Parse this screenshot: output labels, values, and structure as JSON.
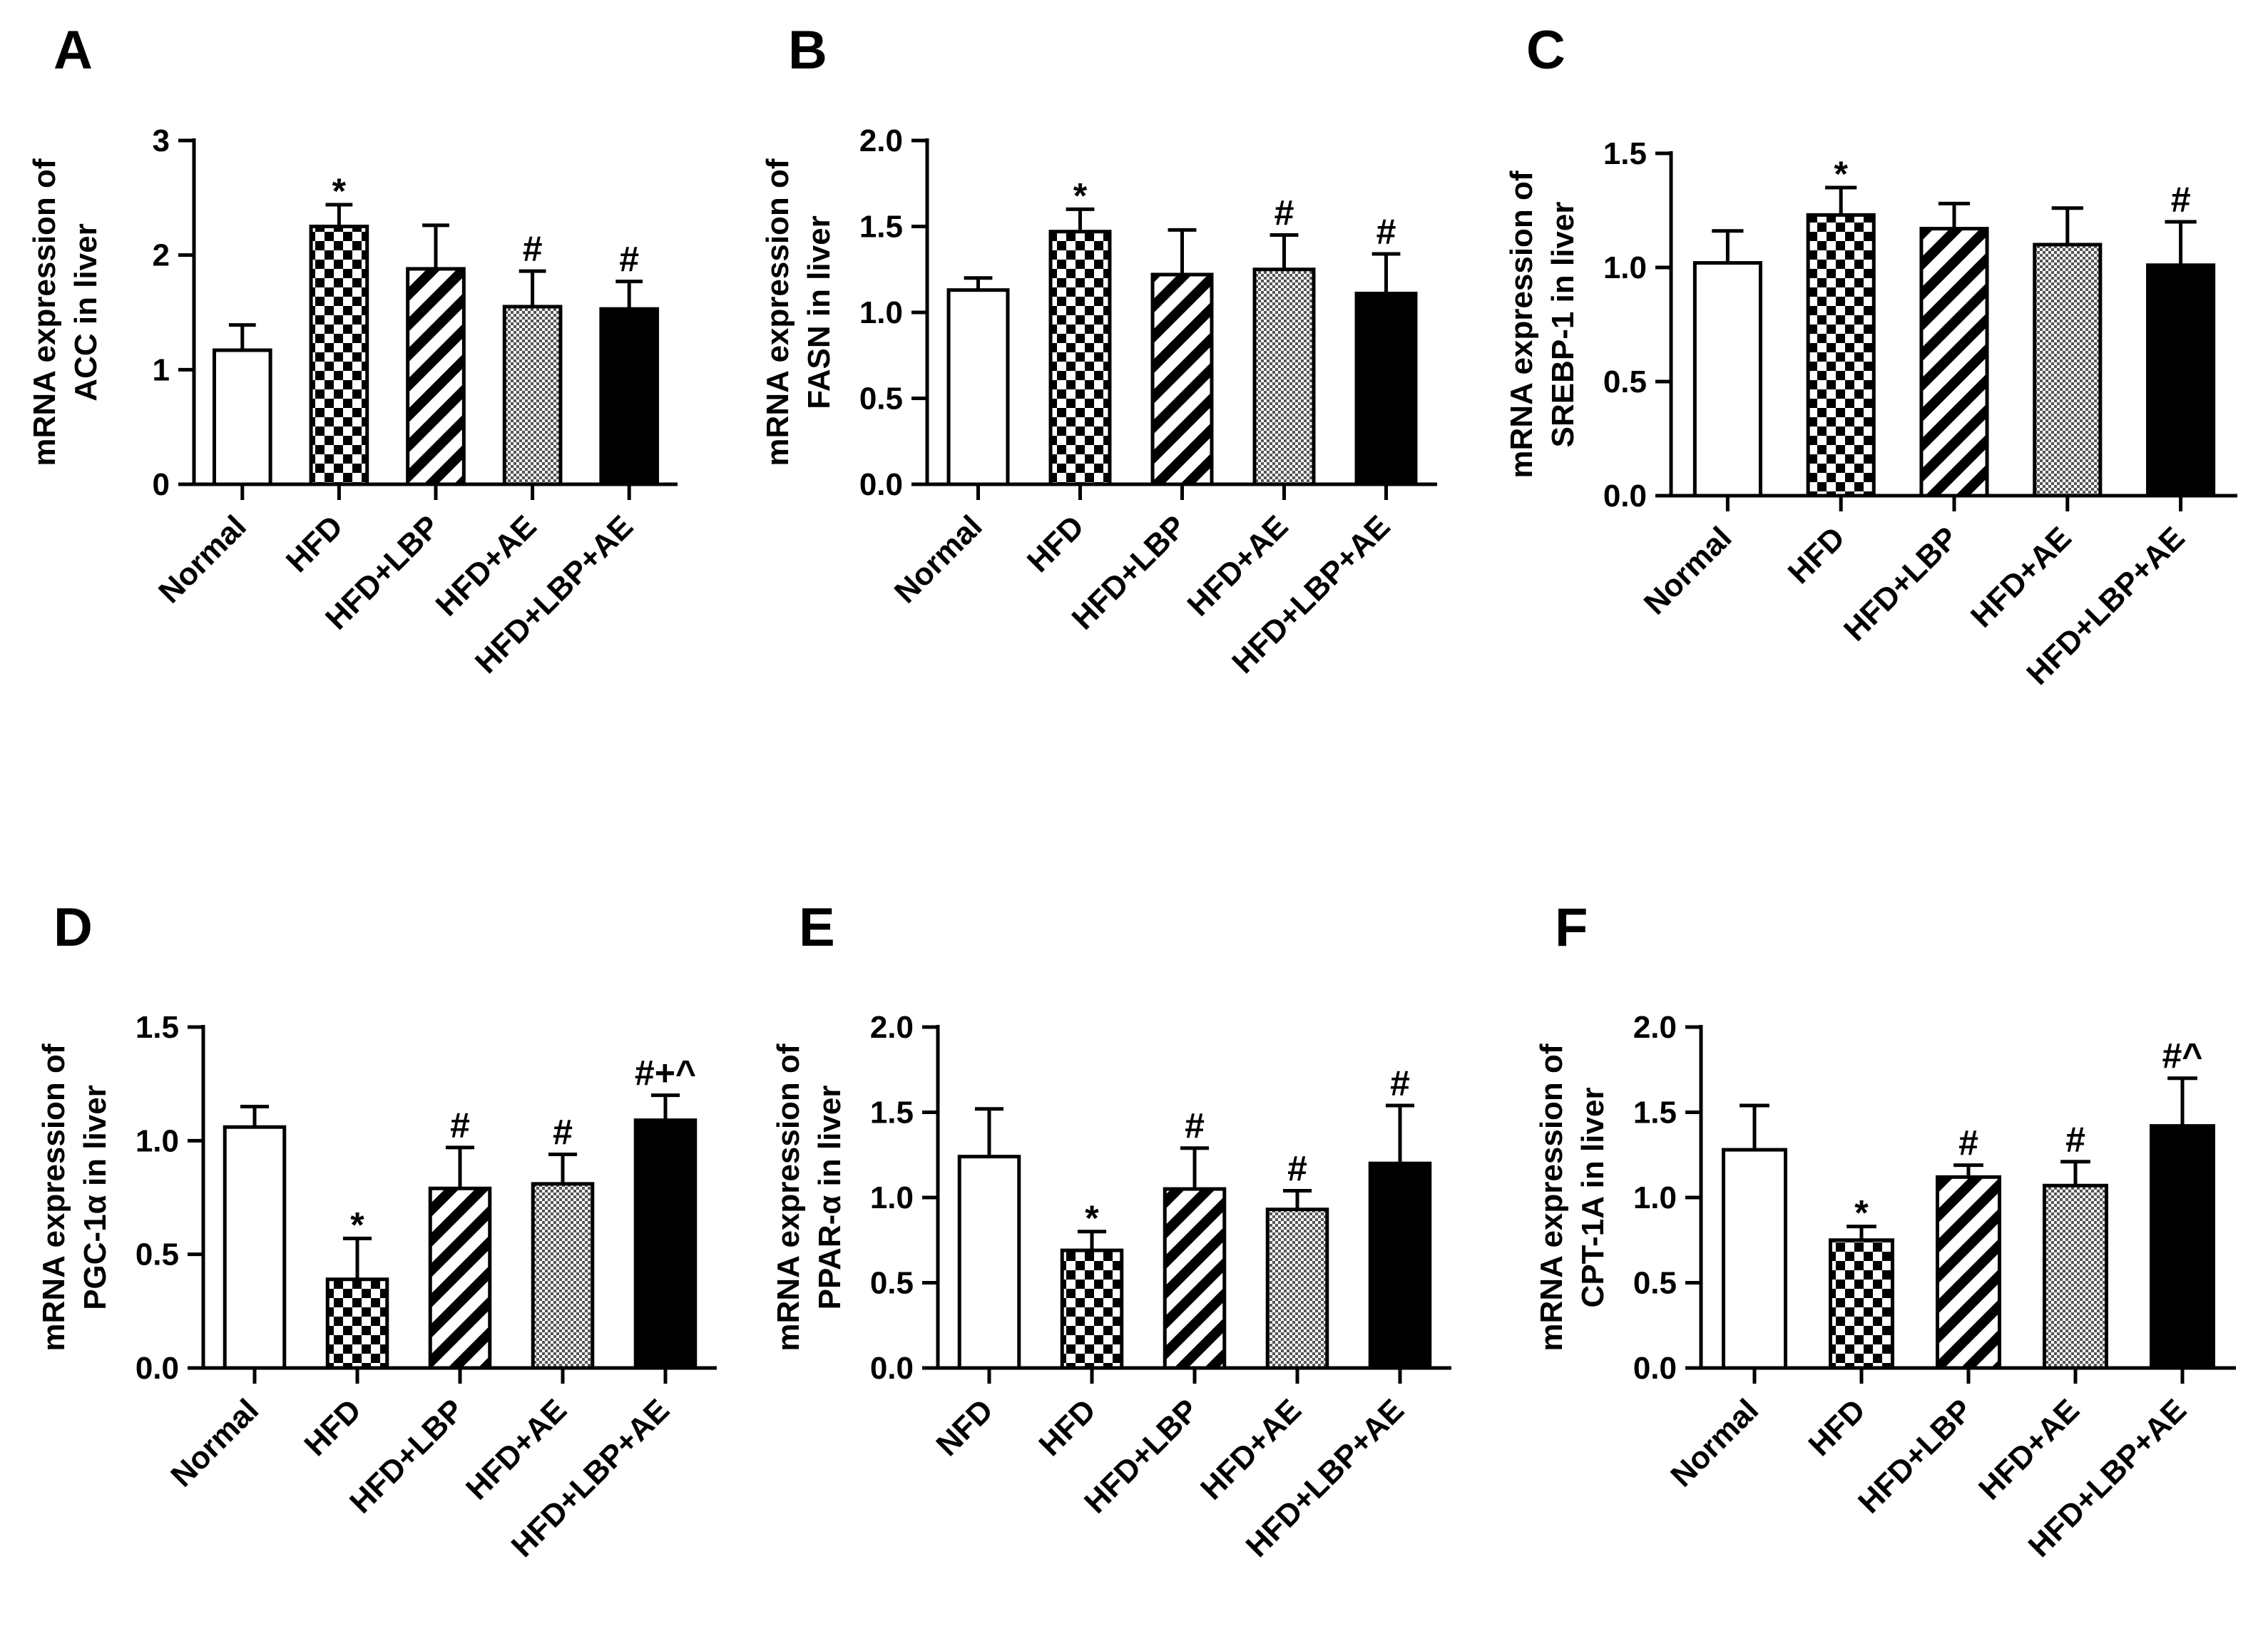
{
  "figure": {
    "panels_count": 6
  },
  "chart_data": [
    {
      "panel": "A",
      "type": "bar",
      "ylabel_lines": [
        "mRNA expression of",
        "ACC in liver"
      ],
      "categories": [
        "Normal",
        "HFD",
        "HFD+LBP",
        "HFD+AE",
        "HFD+LBP+AE"
      ],
      "values": [
        1.17,
        2.25,
        1.88,
        1.55,
        1.53
      ],
      "errors": [
        0.22,
        0.19,
        0.38,
        0.31,
        0.24
      ],
      "annotations": [
        "",
        "*",
        "",
        "#",
        "#"
      ],
      "ylim": [
        0,
        3
      ],
      "yticks": [
        0,
        1,
        2,
        3
      ],
      "ytick_labels": [
        "0",
        "1",
        "2",
        "3"
      ]
    },
    {
      "panel": "B",
      "type": "bar",
      "ylabel_lines": [
        "mRNA expression of",
        "FASN in liver"
      ],
      "categories": [
        "Normal",
        "HFD",
        "HFD+LBP",
        "HFD+AE",
        "HFD+LBP+AE"
      ],
      "values": [
        1.13,
        1.47,
        1.22,
        1.25,
        1.11
      ],
      "errors": [
        0.07,
        0.13,
        0.26,
        0.2,
        0.23
      ],
      "annotations": [
        "",
        "*",
        "",
        "#",
        "#"
      ],
      "ylim": [
        0,
        2
      ],
      "yticks": [
        0,
        0.5,
        1,
        1.5,
        2
      ],
      "ytick_labels": [
        "0.0",
        "0.5",
        "1.0",
        "1.5",
        "2.0"
      ]
    },
    {
      "panel": "C",
      "type": "bar",
      "ylabel_lines": [
        "mRNA expression of",
        "SREBP-1 in liver"
      ],
      "categories": [
        "Normal",
        "HFD",
        "HFD+LBP",
        "HFD+AE",
        "HFD+LBP+AE"
      ],
      "values": [
        1.02,
        1.23,
        1.17,
        1.1,
        1.01
      ],
      "errors": [
        0.14,
        0.12,
        0.11,
        0.16,
        0.19
      ],
      "annotations": [
        "",
        "*",
        "",
        "",
        "#"
      ],
      "ylim": [
        0,
        1.5
      ],
      "yticks": [
        0,
        0.5,
        1,
        1.5
      ],
      "ytick_labels": [
        "0.0",
        "0.5",
        "1.0",
        "1.5"
      ]
    },
    {
      "panel": "D",
      "type": "bar",
      "ylabel_lines": [
        "mRNA expression of",
        "PGC-1α in liver"
      ],
      "categories": [
        "Normal",
        "HFD",
        "HFD+LBP",
        "HFD+AE",
        "HFD+LBP+AE"
      ],
      "values": [
        1.06,
        0.39,
        0.79,
        0.81,
        1.09
      ],
      "errors": [
        0.09,
        0.18,
        0.18,
        0.13,
        0.11
      ],
      "annotations": [
        "",
        "*",
        "#",
        "#",
        "#+^"
      ],
      "ylim": [
        0,
        1.5
      ],
      "yticks": [
        0,
        0.5,
        1,
        1.5
      ],
      "ytick_labels": [
        "0.0",
        "0.5",
        "1.0",
        "1.5"
      ]
    },
    {
      "panel": "E",
      "type": "bar",
      "ylabel_lines": [
        "mRNA expression of",
        "PPAR-α in liver"
      ],
      "categories": [
        "NFD",
        "HFD",
        "HFD+LBP",
        "HFD+AE",
        "HFD+LBP+AE"
      ],
      "values": [
        1.24,
        0.69,
        1.05,
        0.93,
        1.2
      ],
      "errors": [
        0.28,
        0.11,
        0.24,
        0.11,
        0.34
      ],
      "annotations": [
        "",
        "*",
        "#",
        "#",
        "#"
      ],
      "ylim": [
        0,
        2
      ],
      "yticks": [
        0,
        0.5,
        1,
        1.5,
        2
      ],
      "ytick_labels": [
        "0.0",
        "0.5",
        "1.0",
        "1.5",
        "2.0"
      ]
    },
    {
      "panel": "F",
      "type": "bar",
      "ylabel_lines": [
        "mRNA expression of",
        "CPT-1A in liver"
      ],
      "categories": [
        "Normal",
        "HFD",
        "HFD+LBP",
        "HFD+AE",
        "HFD+LBP+AE"
      ],
      "values": [
        1.28,
        0.75,
        1.12,
        1.07,
        1.42
      ],
      "errors": [
        0.26,
        0.08,
        0.07,
        0.14,
        0.28
      ],
      "annotations": [
        "",
        "*",
        "#",
        "#",
        "#^"
      ],
      "ylim": [
        0,
        2
      ],
      "yticks": [
        0,
        0.5,
        1,
        1.5,
        2
      ],
      "ytick_labels": [
        "0.0",
        "0.5",
        "1.0",
        "1.5",
        "2.0"
      ]
    }
  ]
}
